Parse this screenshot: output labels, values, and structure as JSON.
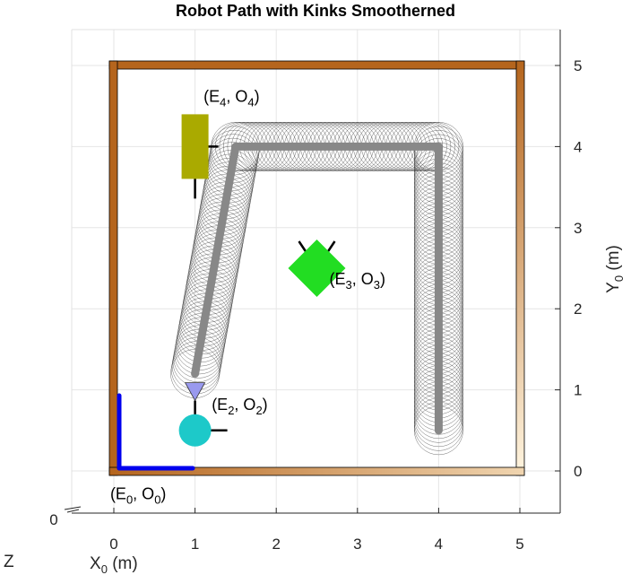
{
  "chart_data": {
    "type": "scatter",
    "title": "Robot Path with Kinks Smootherned",
    "xlabel": "X",
    "xlabel_sub": "0",
    "xlabel_unit": " (m)",
    "ylabel": "Y",
    "ylabel_sub": "0",
    "ylabel_unit": " (m)",
    "zlabel": "Z",
    "z_tick": "0",
    "xlim": [
      -0.5,
      5.5
    ],
    "ylim": [
      -0.5,
      5.5
    ],
    "x_ticks": [
      0,
      1,
      2,
      3,
      4,
      5
    ],
    "y_ticks": [
      0,
      1,
      2,
      3,
      4,
      5
    ],
    "x_tick_labels": [
      "0",
      "1",
      "2",
      "3",
      "4",
      "5"
    ],
    "y_tick_labels": [
      "0",
      "1",
      "2",
      "3",
      "4",
      "5"
    ],
    "grid": true,
    "arena": {
      "x_range": [
        0,
        5
      ],
      "y_range": [
        0,
        5
      ],
      "wall_color": "#b5651d"
    },
    "path_waypoints": [
      {
        "x": 1.0,
        "y": 1.2
      },
      {
        "x": 1.5,
        "y": 4.0
      },
      {
        "x": 4.0,
        "y": 4.0
      },
      {
        "x": 4.0,
        "y": 0.5
      }
    ],
    "robot_circle_radius": 0.3,
    "robot_circle_spacing": 0.05,
    "frames": [
      {
        "name": "E",
        "sub": "0",
        "mid": ", O",
        "sub2": "0",
        "end": ")",
        "x": 0.0,
        "y": 0.0,
        "label_x": 0.3,
        "label_y": -0.35,
        "shape": "axes",
        "color": "#0000ee"
      },
      {
        "name": "E",
        "sub": "2",
        "mid": ", O",
        "sub2": "2",
        "end": ")",
        "x": 1.0,
        "y": 0.5,
        "label_x": 1.55,
        "label_y": 0.75,
        "shape": "circle",
        "color": "#1dc9c9"
      },
      {
        "name": "E",
        "sub": "3",
        "mid": ", O",
        "sub2": "3",
        "end": ")",
        "x": 2.5,
        "y": 2.5,
        "label_x": 3.0,
        "label_y": 2.3,
        "shape": "diamond",
        "color": "#22dd22"
      },
      {
        "name": "E",
        "sub": "4",
        "mid": ", O",
        "sub2": "4",
        "end": ")",
        "x": 1.0,
        "y": 4.0,
        "label_x": 1.45,
        "label_y": 4.55,
        "shape": "rect",
        "color": "#aaaa00"
      }
    ],
    "cone": {
      "x": 1.0,
      "y": 1.0,
      "color": "#9999ee"
    }
  }
}
